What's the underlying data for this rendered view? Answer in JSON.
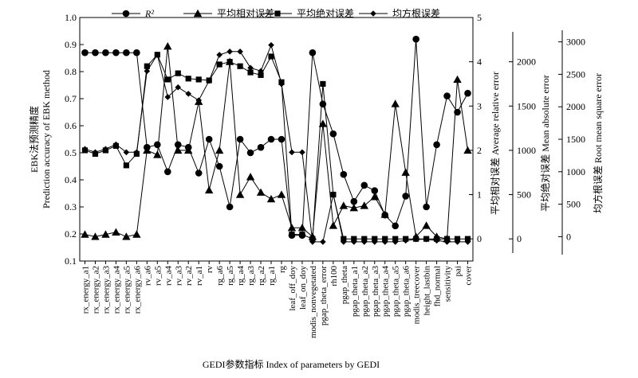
{
  "chart_data": {
    "type": "line",
    "categories": [
      "rx_energy_a1",
      "rx_energy_a2",
      "rx_energy_a3",
      "rx_energy_a4",
      "rx_energy_a5",
      "rx_energy_a6",
      "rv_a6",
      "rv_a5",
      "rv_a4",
      "rv_a3",
      "rv_a2",
      "rv_a1",
      "rv",
      "rg_a6",
      "rg_a5",
      "rg_a4",
      "rg_a3",
      "rg_a2",
      "rg_a1",
      "rg",
      "leaf_off_doy",
      "leaf_on_doy",
      "modis_nonvegetated",
      "pgap_theta_error",
      "rh100",
      "pgap_theta",
      "pgap_theta_a1",
      "pgap_theta_a2",
      "pgap_theta_a3",
      "pgap_theta_a4",
      "pgap_theta_a5",
      "pgap_theta_a6",
      "modis_treecover",
      "height_lastbin",
      "fhd_normal",
      "sensitivity",
      "pai",
      "cover"
    ],
    "xlabel": "GEDI参数指标 Index of parameters by GEDI",
    "y_axes": [
      {
        "id": "r2",
        "label_cn": "EBK法预测精度",
        "label_en": "Prediction accuracy of EBK method",
        "range": [
          0.1,
          1.0
        ],
        "ticks": [
          "0.1",
          "0.2",
          "0.3",
          "0.4",
          "0.5",
          "0.6",
          "0.7",
          "0.8",
          "0.9",
          "1.0"
        ]
      },
      {
        "id": "are",
        "label": "平均相对误差 Average relative error",
        "range": [
          -0.5,
          5
        ],
        "ticks": [
          "0",
          "1",
          "2",
          "3",
          "4",
          "5"
        ]
      },
      {
        "id": "mae",
        "label": "平均绝对误差 Mean absolute error",
        "range": [
          -250,
          2500
        ],
        "ticks": [
          "0",
          "500",
          "1000",
          "1500",
          "2000"
        ]
      },
      {
        "id": "rmse",
        "label": "均方根误差 Root mean square error",
        "range": [
          -375,
          3375
        ],
        "ticks": [
          "0",
          "500",
          "1000",
          "1500",
          "2000",
          "2500",
          "3000"
        ]
      }
    ],
    "series": [
      {
        "name": "R²",
        "marker": "circle",
        "axis": "r2",
        "values": [
          0.87,
          0.87,
          0.87,
          0.87,
          0.87,
          0.87,
          0.52,
          0.53,
          0.43,
          0.53,
          0.52,
          0.425,
          0.55,
          0.45,
          0.3,
          0.55,
          0.5,
          0.52,
          0.55,
          0.55,
          0.195,
          0.195,
          0.87,
          0.68,
          0.57,
          0.42,
          0.32,
          0.38,
          0.36,
          0.27,
          0.23,
          0.34,
          0.92,
          0.3,
          0.53,
          0.71,
          0.65,
          0.72
        ]
      },
      {
        "name": "平均相对误差",
        "marker": "triangle",
        "axis": "are",
        "values": [
          0.1,
          0.05,
          0.1,
          0.15,
          0.05,
          0.1,
          2.0,
          1.9,
          4.35,
          2.0,
          2.0,
          3.1,
          1.1,
          2.0,
          4.0,
          1.0,
          1.4,
          1.05,
          0.9,
          1.0,
          0.25,
          0.25,
          0.05,
          2.6,
          0.3,
          0.75,
          0.7,
          0.75,
          0.95,
          0.55,
          3.05,
          1.5,
          0.05,
          0.3,
          0.05,
          0.0,
          3.6,
          2.0
        ]
      },
      {
        "name": "平均绝对误差",
        "marker": "square",
        "axis": "mae",
        "values": [
          1000,
          960,
          1000,
          1050,
          830,
          960,
          1950,
          2080,
          1800,
          1870,
          1810,
          1800,
          1790,
          1970,
          2000,
          1950,
          1880,
          1850,
          2060,
          1770,
          50,
          50,
          0,
          1750,
          500,
          0,
          0,
          0,
          0,
          0,
          0,
          0,
          0,
          0,
          0,
          0,
          0,
          0
        ]
      },
      {
        "name": "均方根误差",
        "marker": "diamond",
        "axis": "rmse",
        "values": [
          1350,
          1300,
          1350,
          1420,
          1300,
          1300,
          2550,
          2800,
          2150,
          2300,
          2200,
          2100,
          2400,
          2800,
          2850,
          2850,
          2600,
          2550,
          2950,
          2350,
          1300,
          1300,
          -80,
          -80,
          650,
          -80,
          -80,
          -80,
          -80,
          -80,
          -80,
          -60,
          -40,
          -40,
          -60,
          -80,
          -80,
          -80
        ]
      }
    ],
    "legend_position": "top",
    "grid": false
  }
}
